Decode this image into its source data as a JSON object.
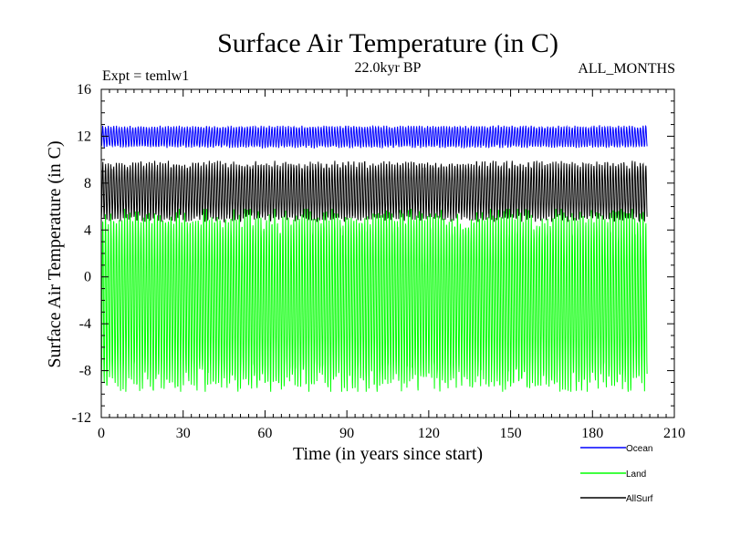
{
  "header": {
    "title": "Surface Air Temperature (in C)",
    "subtitle": "22.0kyr BP",
    "expt_label": "Expt = temlw1",
    "months_label": "ALL_MONTHS"
  },
  "chart_data": {
    "type": "line",
    "title": "Surface Air Temperature (in C)",
    "subtitle": "22.0kyr BP",
    "xlabel": "Time (in years since start)",
    "ylabel": "Surface Air Temperature (in C)",
    "xlim": [
      0,
      210
    ],
    "ylim": [
      -12,
      16
    ],
    "xticks": [
      0,
      30,
      60,
      90,
      120,
      150,
      180,
      210
    ],
    "yticks": [
      -12,
      -8,
      -4,
      0,
      4,
      8,
      12,
      16
    ],
    "x_range_data": [
      0,
      200
    ],
    "sampling": "monthly",
    "legend_position": "bottom-right, outside plot",
    "series": [
      {
        "name": "Ocean",
        "color": "#0000ff",
        "mean": 12.1,
        "min": 11.0,
        "max": 12.9
      },
      {
        "name": "Land",
        "color": "#00ff00",
        "mean": -2.0,
        "min": -9.8,
        "max": 5.8
      },
      {
        "name": "AllSurf",
        "color": "#000000",
        "mean": 7.3,
        "min": 4.7,
        "max": 9.9
      }
    ]
  }
}
